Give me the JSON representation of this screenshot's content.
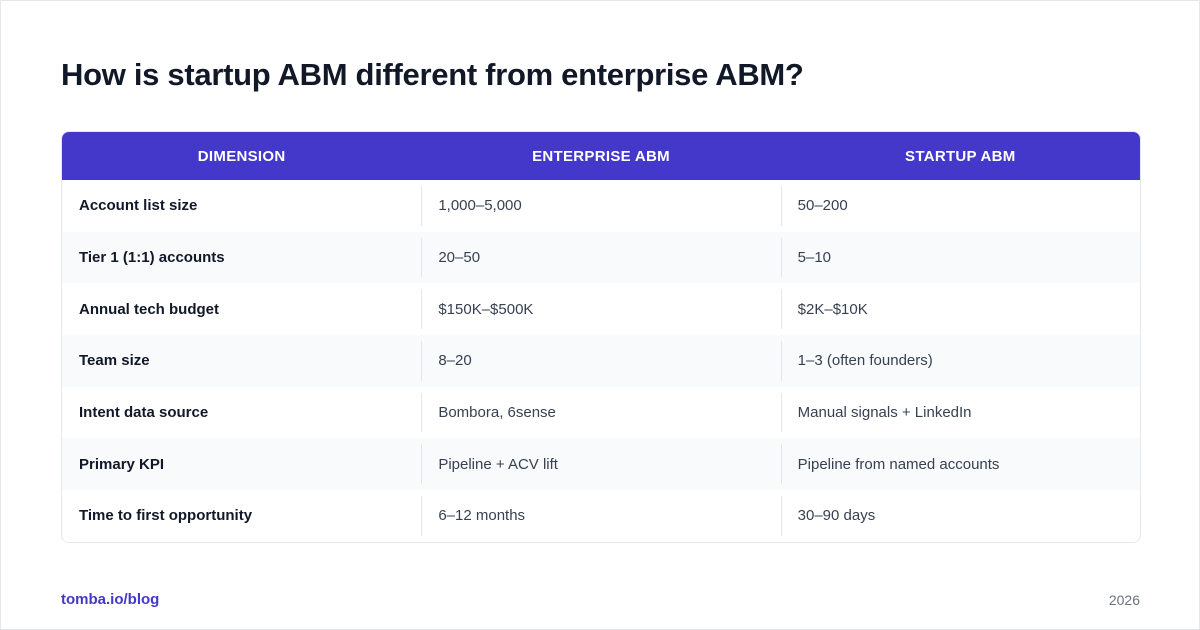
{
  "title": "How is startup ABM different from enterprise ABM?",
  "table": {
    "headers": [
      "DIMENSION",
      "ENTERPRISE ABM",
      "STARTUP ABM"
    ],
    "rows": [
      [
        "Account list size",
        "1,000–5,000",
        "50–200"
      ],
      [
        "Tier 1 (1:1) accounts",
        "20–50",
        "5–10"
      ],
      [
        "Annual tech budget",
        "$150K–$500K",
        "$2K–$10K"
      ],
      [
        "Team size",
        "8–20",
        "1–3 (often founders)"
      ],
      [
        "Intent data source",
        "Bombora, 6sense",
        "Manual signals + LinkedIn"
      ],
      [
        "Primary KPI",
        "Pipeline + ACV lift",
        "Pipeline from named accounts"
      ],
      [
        "Time to first opportunity",
        "6–12 months",
        "30–90 days"
      ]
    ]
  },
  "footer": {
    "source": "tomba.io/blog",
    "year": "2026"
  }
}
